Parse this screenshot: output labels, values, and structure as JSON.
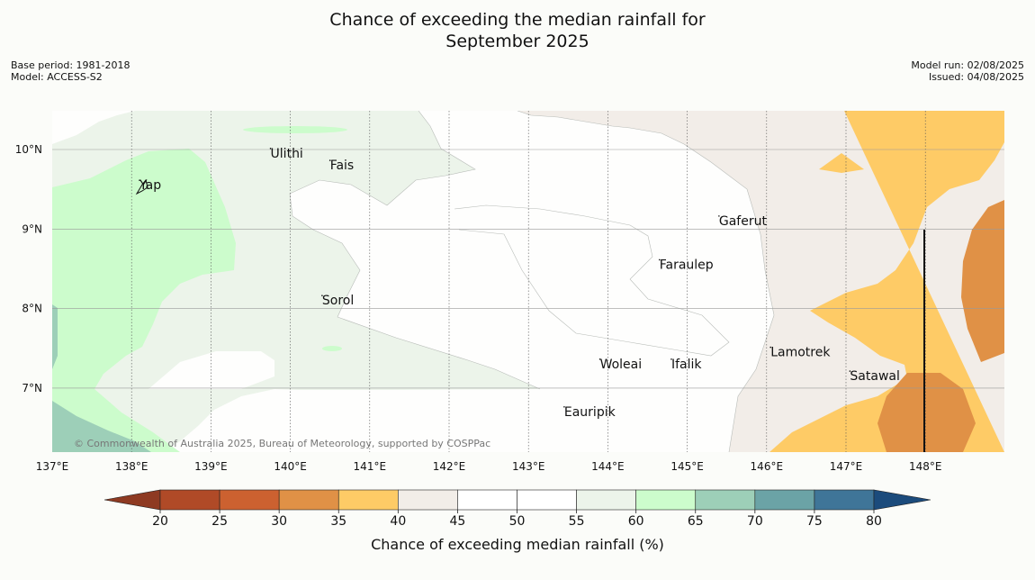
{
  "title": {
    "line1": "Chance of exceeding the median rainfall for",
    "line2": "September 2025"
  },
  "meta": {
    "base_period": "Base period: 1981-2018",
    "model": "Model: ACCESS-S2",
    "model_run": "Model run: 02/08/2025",
    "issued": "Issued: 04/08/2025"
  },
  "map": {
    "lon_range": [
      137,
      149
    ],
    "lat_range": [
      6.2,
      10.5
    ],
    "lon_ticks": [
      {
        "value": 137,
        "label": "137°E"
      },
      {
        "value": 138,
        "label": "138°E"
      },
      {
        "value": 139,
        "label": "139°E"
      },
      {
        "value": 140,
        "label": "140°E"
      },
      {
        "value": 141,
        "label": "141°E"
      },
      {
        "value": 142,
        "label": "142°E"
      },
      {
        "value": 143,
        "label": "143°E"
      },
      {
        "value": 144,
        "label": "144°E"
      },
      {
        "value": 145,
        "label": "145°E"
      },
      {
        "value": 146,
        "label": "146°E"
      },
      {
        "value": 147,
        "label": "147°E"
      },
      {
        "value": 148,
        "label": "148°E"
      }
    ],
    "lat_ticks": [
      {
        "value": 10,
        "label": "10°N"
      },
      {
        "value": 9,
        "label": "9°N"
      },
      {
        "value": 8,
        "label": "8°N"
      },
      {
        "value": 7,
        "label": "7°N"
      }
    ],
    "places": [
      {
        "name": "Ulithi",
        "lon": 139.75,
        "lat": 9.9
      },
      {
        "name": "Fais",
        "lon": 140.5,
        "lat": 9.75
      },
      {
        "name": "Yap",
        "lon": 138.1,
        "lat": 9.5
      },
      {
        "name": "Gaferut",
        "lon": 145.4,
        "lat": 9.05
      },
      {
        "name": "Faraulep",
        "lon": 144.65,
        "lat": 8.5
      },
      {
        "name": "Sorol",
        "lon": 140.4,
        "lat": 8.05
      },
      {
        "name": "Lamotrek",
        "lon": 146.05,
        "lat": 7.4
      },
      {
        "name": "Woleai",
        "lon": 143.9,
        "lat": 7.25
      },
      {
        "name": "Ifalik",
        "lon": 144.8,
        "lat": 7.25
      },
      {
        "name": "Satawal",
        "lon": 147.05,
        "lat": 7.1
      },
      {
        "name": "Eauripik",
        "lon": 143.45,
        "lat": 6.65
      }
    ],
    "copyright": "© Commonwealth of Australia 2025, Bureau of Meteorology, supported by COSPPac"
  },
  "colorbar": {
    "title": "Chance of exceeding median rainfall (%)",
    "under_color": "#8e3a22",
    "over_color": "#1b4b7c",
    "bins": [
      {
        "from": 20,
        "to": 25,
        "color": "#b04a27"
      },
      {
        "from": 25,
        "to": 30,
        "color": "#cc6130"
      },
      {
        "from": 30,
        "to": 35,
        "color": "#e09146"
      },
      {
        "from": 35,
        "to": 40,
        "color": "#fecb66"
      },
      {
        "from": 40,
        "to": 45,
        "color": "#f2ede8"
      },
      {
        "from": 45,
        "to": 50,
        "color": "#ffffff"
      },
      {
        "from": 50,
        "to": 55,
        "color": "#ffffff"
      },
      {
        "from": 55,
        "to": 60,
        "color": "#ecf4ea"
      },
      {
        "from": 60,
        "to": 65,
        "color": "#ccfccc"
      },
      {
        "from": 65,
        "to": 70,
        "color": "#9dcfb8"
      },
      {
        "from": 70,
        "to": 75,
        "color": "#6ba3a6"
      },
      {
        "from": 75,
        "to": 80,
        "color": "#3f7598"
      }
    ],
    "tick_labels": [
      "20",
      "25",
      "30",
      "35",
      "40",
      "45",
      "50",
      "55",
      "60",
      "65",
      "70",
      "75",
      "80"
    ]
  }
}
